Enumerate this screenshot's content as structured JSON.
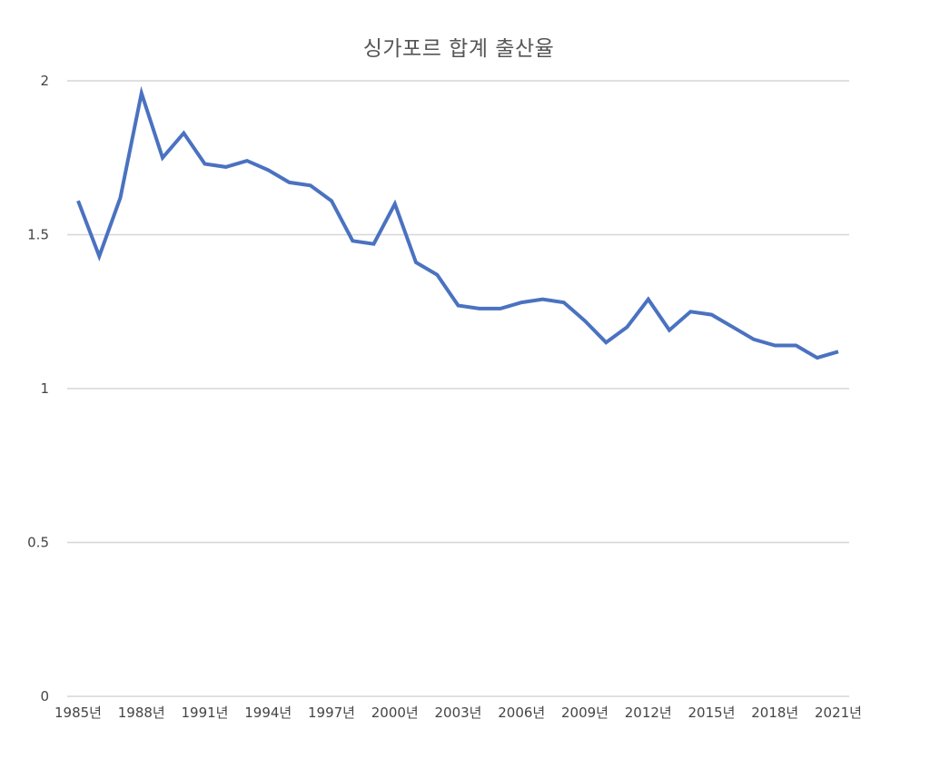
{
  "chart_data": {
    "type": "line",
    "title": "싱가포르 합계 출산율",
    "xlabel": "",
    "ylabel": "",
    "ylim": [
      0,
      2
    ],
    "yticks": [
      0,
      0.5,
      1,
      1.5,
      2
    ],
    "ytick_labels": [
      "0",
      "0.5",
      "1",
      "1.5",
      "2"
    ],
    "grid": true,
    "legend": null,
    "x": [
      "1985년",
      "1986년",
      "1987년",
      "1988년",
      "1989년",
      "1990년",
      "1991년",
      "1992년",
      "1993년",
      "1994년",
      "1995년",
      "1996년",
      "1997년",
      "1998년",
      "1999년",
      "2000년",
      "2001년",
      "2002년",
      "2003년",
      "2004년",
      "2005년",
      "2006년",
      "2007년",
      "2008년",
      "2009년",
      "2010년",
      "2011년",
      "2012년",
      "2013년",
      "2014년",
      "2015년",
      "2016년",
      "2017년",
      "2018년",
      "2019년",
      "2020년",
      "2021년"
    ],
    "xtick_labels": [
      "1985년",
      "1988년",
      "1991년",
      "1994년",
      "1997년",
      "2000년",
      "2003년",
      "2006년",
      "2009년",
      "2012년",
      "2015년",
      "2018년",
      "2021년"
    ],
    "series": [
      {
        "name": "합계 출산율",
        "color": "#4a72c0",
        "values": [
          1.61,
          1.43,
          1.62,
          1.96,
          1.75,
          1.83,
          1.73,
          1.72,
          1.74,
          1.71,
          1.67,
          1.66,
          1.61,
          1.48,
          1.47,
          1.6,
          1.41,
          1.37,
          1.27,
          1.26,
          1.26,
          1.28,
          1.29,
          1.28,
          1.22,
          1.15,
          1.2,
          1.29,
          1.19,
          1.25,
          1.24,
          1.2,
          1.16,
          1.14,
          1.14,
          1.1,
          1.12
        ]
      }
    ]
  }
}
